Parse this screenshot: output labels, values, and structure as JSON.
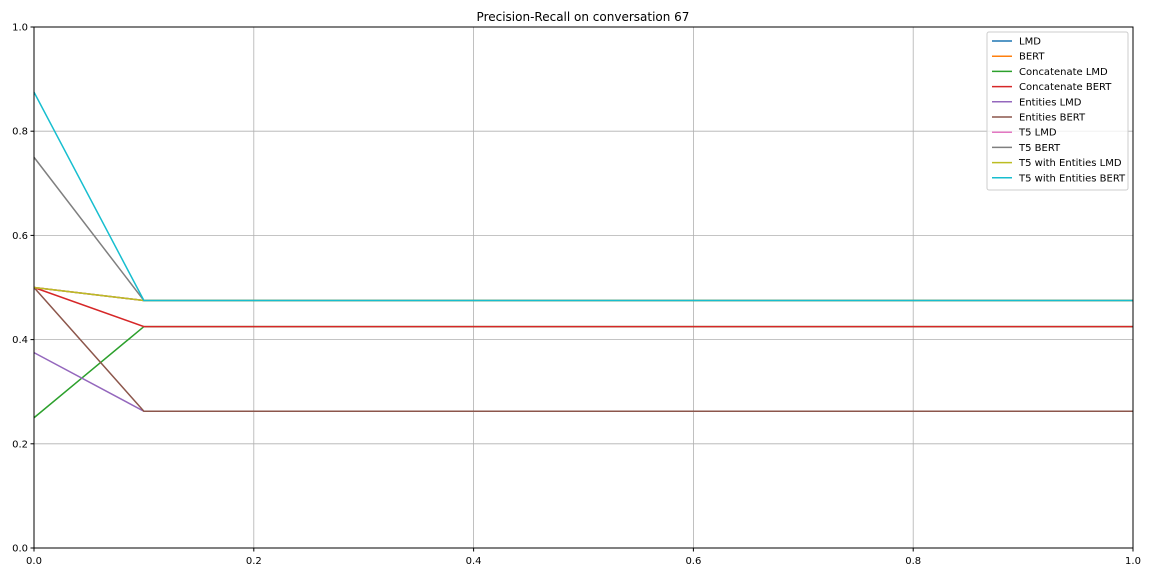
{
  "chart_data": {
    "type": "line",
    "title": "Precision-Recall on conversation 67",
    "xlabel": "",
    "ylabel": "",
    "xlim": [
      0,
      1
    ],
    "ylim": [
      0,
      1
    ],
    "grid": true,
    "legend_position": "top-right",
    "xticks": [
      "0.0",
      "0.2",
      "0.4",
      "0.6",
      "0.8",
      "1.0"
    ],
    "yticks": [
      "0.0",
      "0.2",
      "0.4",
      "0.6",
      "0.8",
      "1.0"
    ],
    "x": [
      0,
      0.1,
      0.2,
      0.3,
      0.4,
      0.5,
      0.6,
      0.7,
      0.8,
      0.9,
      1.0
    ],
    "series": [
      {
        "name": "LMD",
        "color": "#1f77b4",
        "values": [
          0.5,
          0.475,
          0.475,
          0.475,
          0.475,
          0.475,
          0.475,
          0.475,
          0.475,
          0.475,
          0.475
        ]
      },
      {
        "name": "BERT",
        "color": "#ff7f0e",
        "values": [
          0.5,
          0.475,
          0.475,
          0.475,
          0.475,
          0.475,
          0.475,
          0.475,
          0.475,
          0.475,
          0.475
        ]
      },
      {
        "name": "Concatenate LMD",
        "color": "#2ca02c",
        "values": [
          0.25,
          0.425,
          0.425,
          0.425,
          0.425,
          0.425,
          0.425,
          0.425,
          0.425,
          0.425,
          0.425
        ]
      },
      {
        "name": "Concatenate BERT",
        "color": "#d62728",
        "values": [
          0.5,
          0.425,
          0.425,
          0.425,
          0.425,
          0.425,
          0.425,
          0.425,
          0.425,
          0.425,
          0.425
        ]
      },
      {
        "name": "Entities LMD",
        "color": "#9467bd",
        "values": [
          0.375,
          0.2625,
          0.2625,
          0.2625,
          0.2625,
          0.2625,
          0.2625,
          0.2625,
          0.2625,
          0.2625,
          0.2625
        ]
      },
      {
        "name": "Entities BERT",
        "color": "#8c564b",
        "values": [
          0.5,
          0.2625,
          0.2625,
          0.2625,
          0.2625,
          0.2625,
          0.2625,
          0.2625,
          0.2625,
          0.2625,
          0.2625
        ]
      },
      {
        "name": "T5 LMD",
        "color": "#e377c2",
        "values": [
          0.5,
          0.475,
          0.475,
          0.475,
          0.475,
          0.475,
          0.475,
          0.475,
          0.475,
          0.475,
          0.475
        ]
      },
      {
        "name": "T5 BERT",
        "color": "#7f7f7f",
        "values": [
          0.75,
          0.475,
          0.475,
          0.475,
          0.475,
          0.475,
          0.475,
          0.475,
          0.475,
          0.475,
          0.475
        ]
      },
      {
        "name": "T5 with Entities LMD",
        "color": "#bcbd22",
        "values": [
          0.5,
          0.475,
          0.475,
          0.475,
          0.475,
          0.475,
          0.475,
          0.475,
          0.475,
          0.475,
          0.475
        ]
      },
      {
        "name": "T5 with Entities BERT",
        "color": "#17becf",
        "values": [
          0.875,
          0.475,
          0.475,
          0.475,
          0.475,
          0.475,
          0.475,
          0.475,
          0.475,
          0.475,
          0.475
        ]
      }
    ]
  }
}
